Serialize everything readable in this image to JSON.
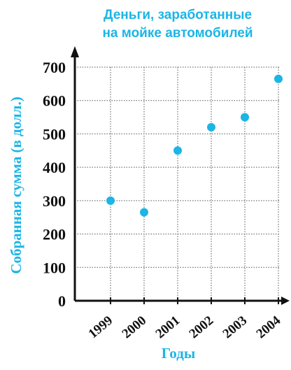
{
  "colors": {
    "accent": "#1bb5e6",
    "axis": "#111111",
    "grid": "#555555"
  },
  "chart_data": {
    "type": "scatter",
    "title": [
      "Деньги, заработанные",
      "на мойке автомобилей"
    ],
    "xlabel": "Годы",
    "ylabel": "Собранная сумма (в долл.)",
    "categories": [
      "1999",
      "2000",
      "2001",
      "2002",
      "2003",
      "2004"
    ],
    "values": [
      300,
      265,
      450,
      520,
      550,
      665
    ],
    "y_ticks": [
      "0",
      "100",
      "200",
      "300",
      "400",
      "500",
      "600",
      "700"
    ],
    "ylim": [
      0,
      700
    ],
    "grid": true,
    "legend": "none"
  }
}
